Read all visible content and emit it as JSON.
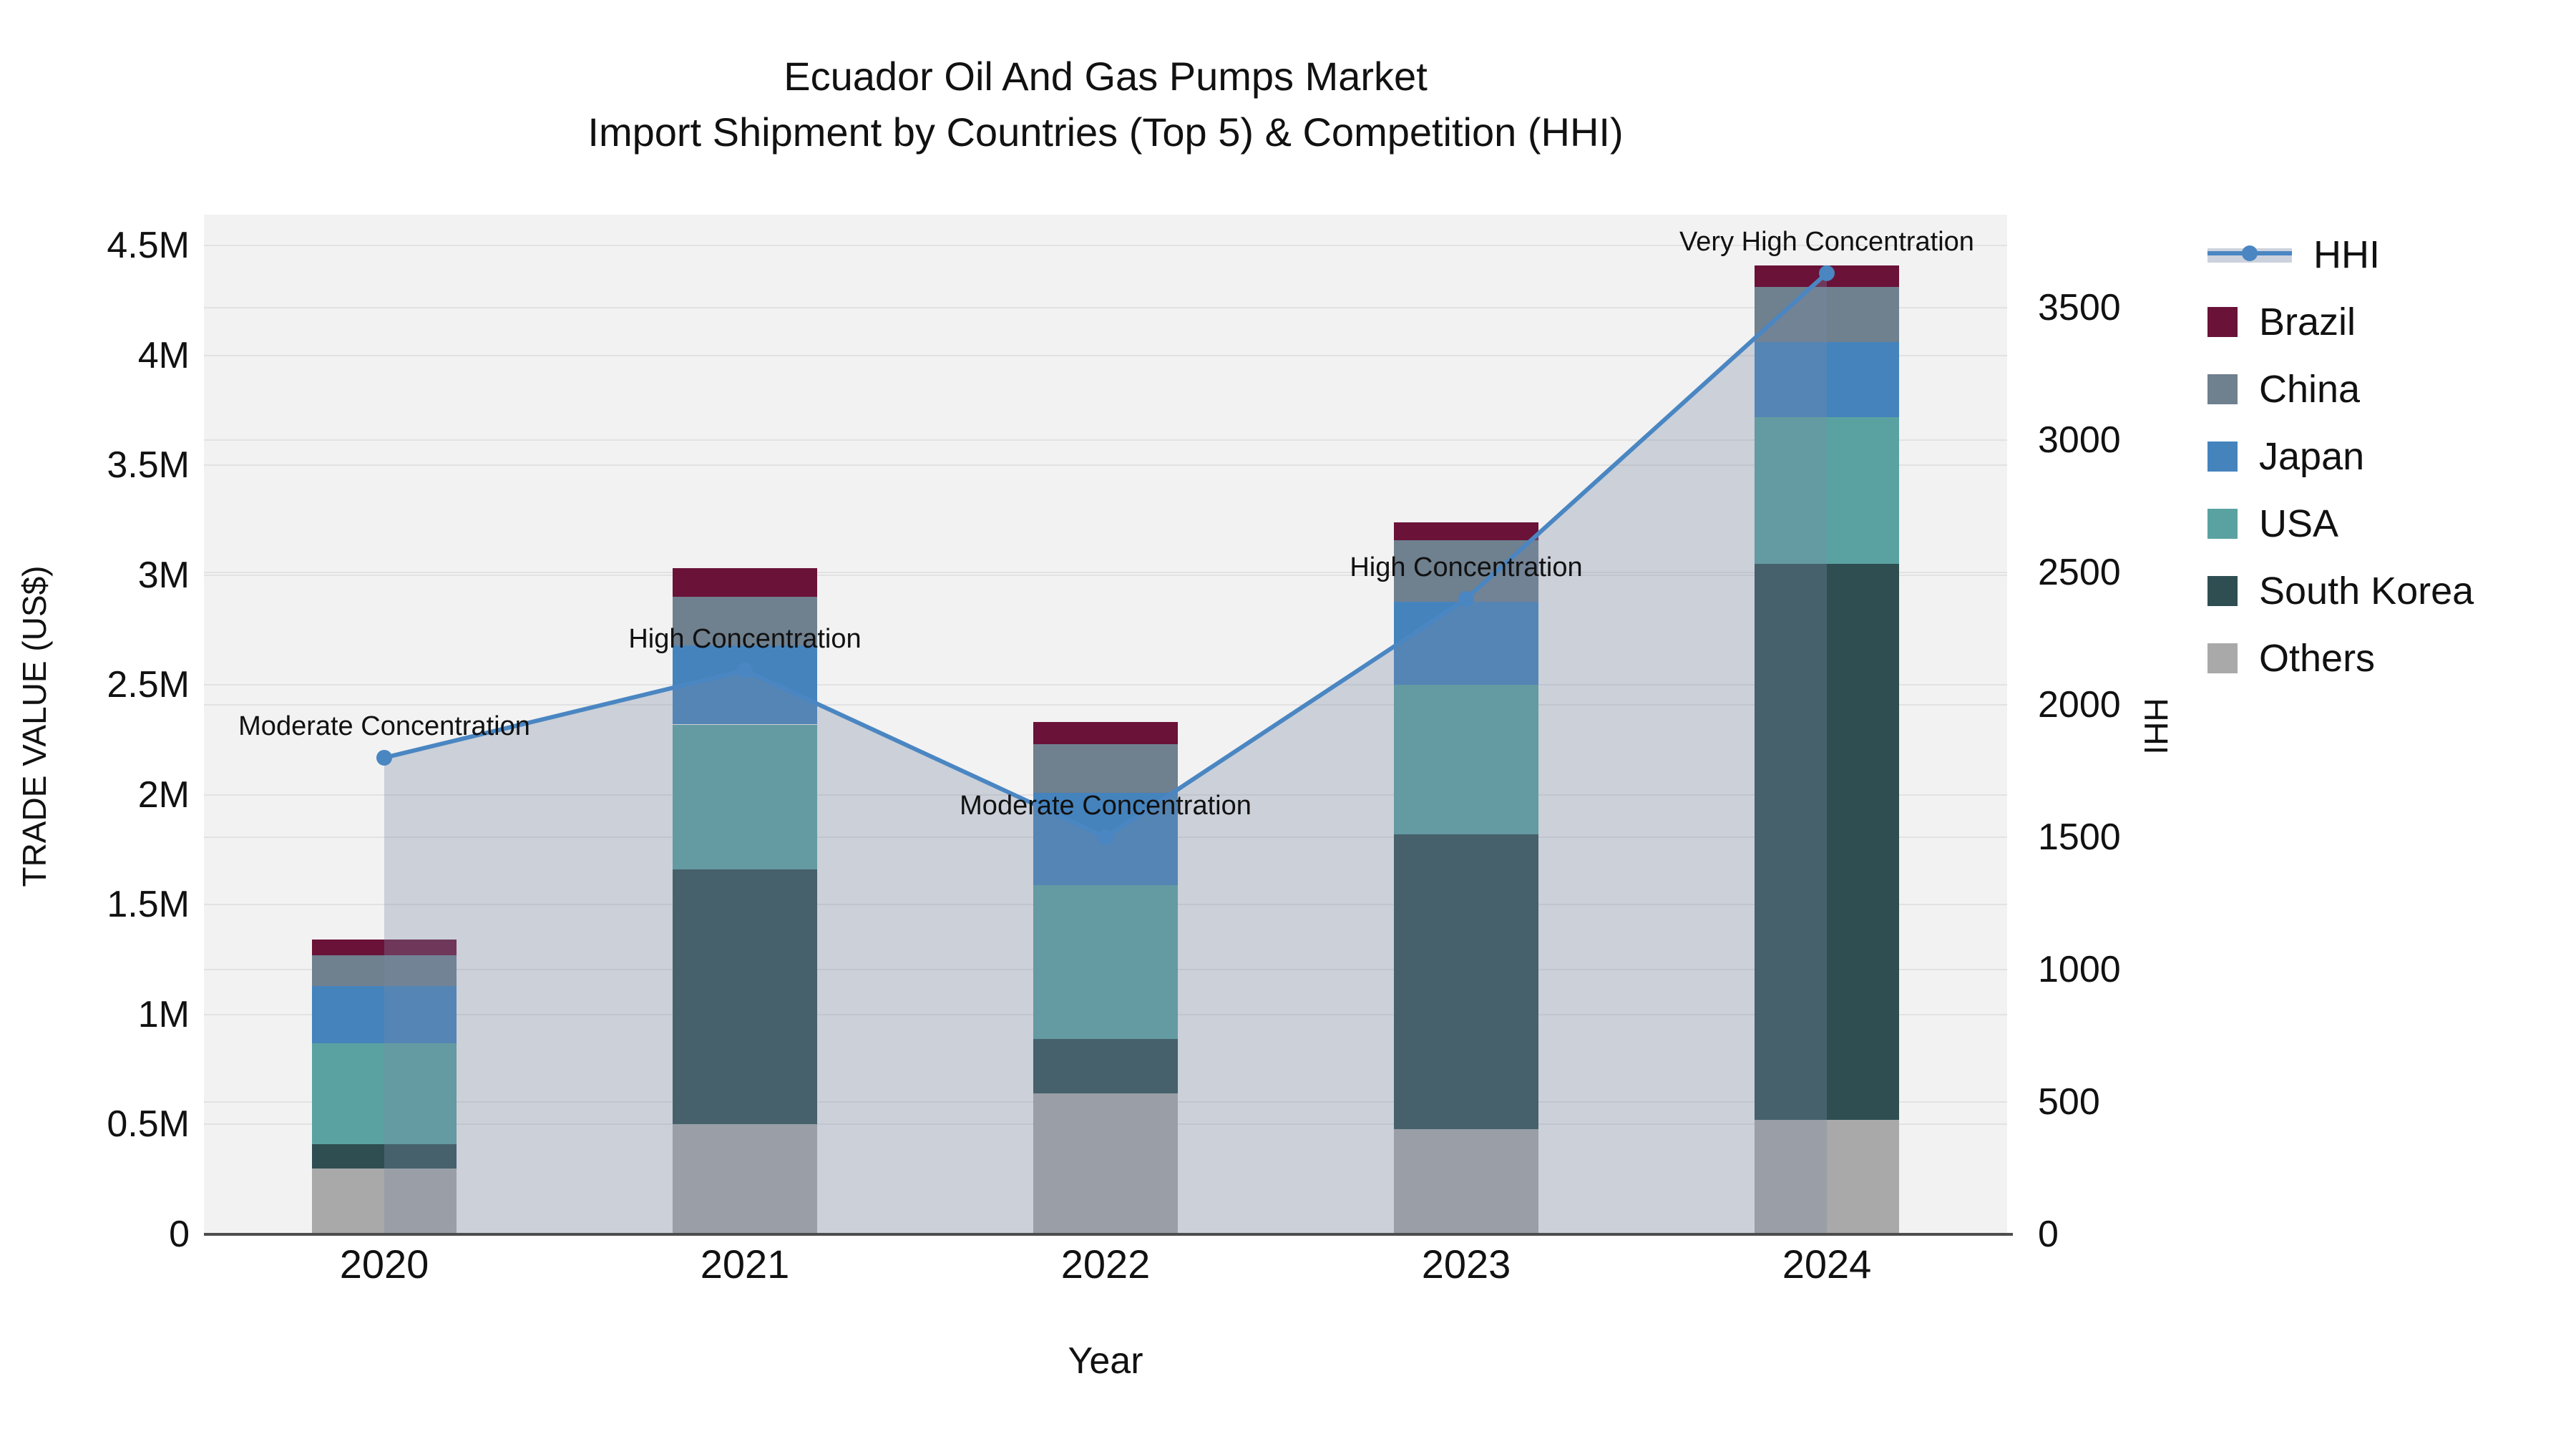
{
  "title": {
    "line1": "Ecuador Oil And Gas Pumps Market",
    "line2": "Import Shipment by Countries (Top 5) & Competition (HHI)"
  },
  "axes": {
    "x": {
      "title": "Year"
    },
    "y_left": {
      "title": "TRADE VALUE (US$)"
    },
    "y_right": {
      "title": "HHI"
    }
  },
  "chart_data": {
    "type": "bar+line",
    "title": "Ecuador Oil And Gas Pumps Market — Import Shipment by Countries (Top 5) & Competition (HHI)",
    "xlabel": "Year",
    "ylabel_left": "TRADE VALUE (US$)",
    "ylabel_right": "HHI",
    "categories": [
      "2020",
      "2021",
      "2022",
      "2023",
      "2024"
    ],
    "series": [
      {
        "name": "Others",
        "color": "#a9a9a9",
        "values_musd": [
          0.3,
          0.5,
          0.64,
          0.48,
          0.52
        ]
      },
      {
        "name": "South Korea",
        "color": "#2e4e52",
        "values_musd": [
          0.11,
          1.16,
          0.25,
          1.34,
          2.53
        ]
      },
      {
        "name": "USA",
        "color": "#5aa2a1",
        "values_musd": [
          0.46,
          0.66,
          0.7,
          0.68,
          0.67
        ]
      },
      {
        "name": "Japan",
        "color": "#4583bd",
        "values_musd": [
          0.26,
          0.36,
          0.42,
          0.38,
          0.34
        ]
      },
      {
        "name": "China",
        "color": "#6f808f",
        "values_musd": [
          0.14,
          0.22,
          0.22,
          0.28,
          0.25
        ]
      },
      {
        "name": "Brazil",
        "color": "#6a1238",
        "values_musd": [
          0.07,
          0.13,
          0.1,
          0.08,
          0.1
        ]
      }
    ],
    "bar_totals_musd": [
      1.34,
      3.03,
      2.33,
      3.24,
      4.41
    ],
    "hhi_line": {
      "name": "HHI",
      "color": "#4a86c2",
      "area_fill": "rgba(122,138,166,0.32)",
      "values": [
        1800,
        2130,
        1500,
        2400,
        3630
      ]
    },
    "annotations": [
      "Moderate Concentration",
      "High Concentration",
      "Moderate Concentration",
      "High Concentration",
      "Very High Concentration"
    ],
    "y_left_ticks": [
      "0",
      "0.5M",
      "1M",
      "1.5M",
      "2M",
      "2.5M",
      "3M",
      "3.5M",
      "4M",
      "4.5M"
    ],
    "y_left_tick_values_musd": [
      0,
      0.5,
      1,
      1.5,
      2,
      2.5,
      3,
      3.5,
      4,
      4.5
    ],
    "y_right_ticks": [
      "0",
      "500",
      "1000",
      "1500",
      "2000",
      "2500",
      "3000",
      "3500"
    ],
    "y_right_tick_values": [
      0,
      500,
      1000,
      1500,
      2000,
      2500,
      3000,
      3500
    ],
    "layout": {
      "y_left_axis_top_musd": 4.64,
      "y_right_axis_top": 3851,
      "grid": true,
      "plot_background": "#f2f2f2",
      "legend_position": "right",
      "legend_entries": [
        "HHI",
        "Brazil",
        "China",
        "Japan",
        "USA",
        "South Korea",
        "Others"
      ]
    }
  }
}
